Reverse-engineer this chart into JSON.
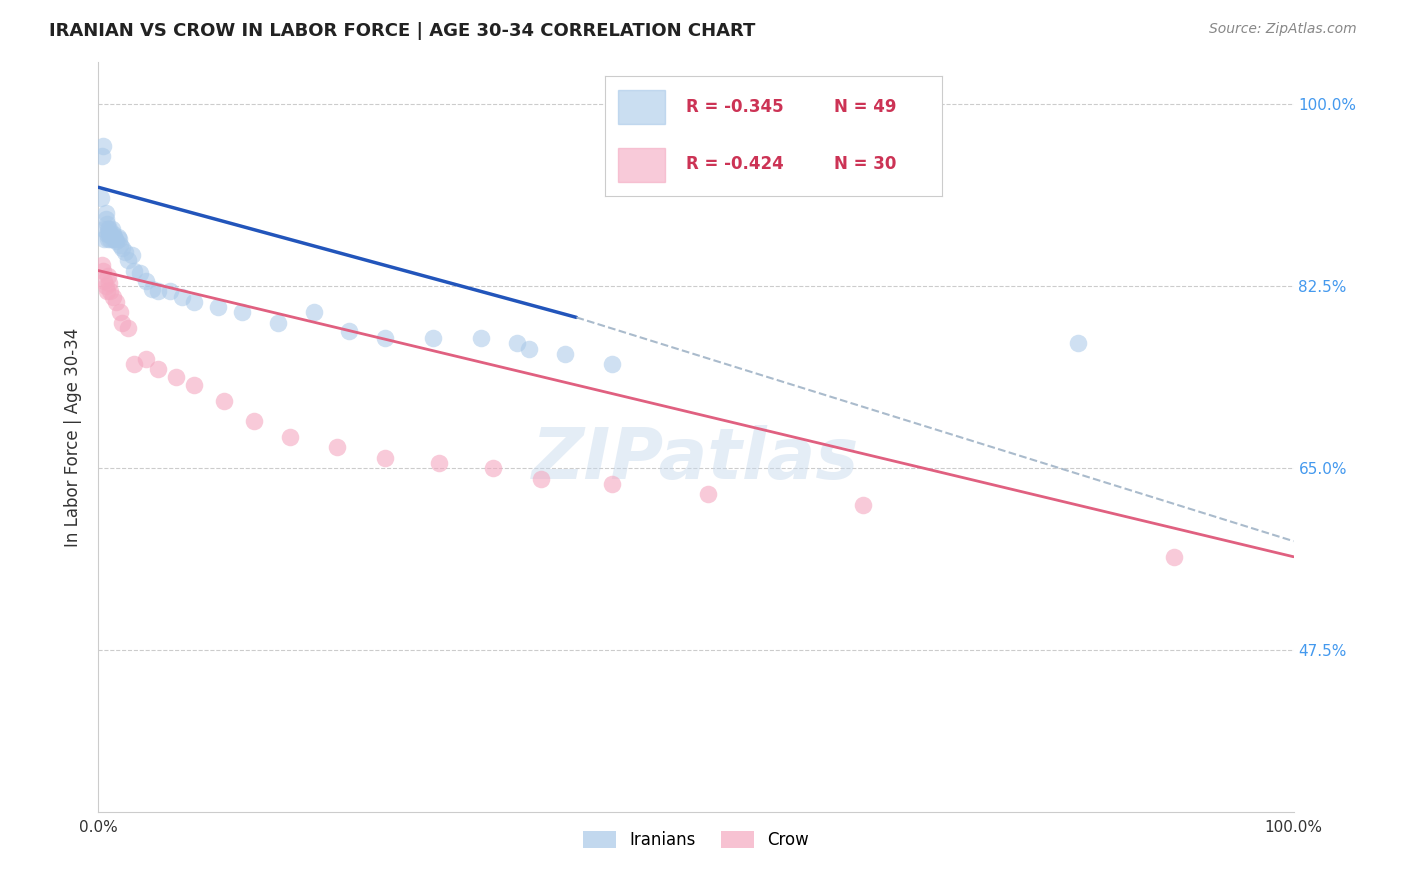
{
  "title": "IRANIAN VS CROW IN LABOR FORCE | AGE 30-34 CORRELATION CHART",
  "source": "Source: ZipAtlas.com",
  "ylabel": "In Labor Force | Age 30-34",
  "xlim": [
    0.0,
    1.0
  ],
  "ylim": [
    0.32,
    1.04
  ],
  "watermark_text": "ZIPatlas",
  "legend_blue_r": "-0.345",
  "legend_blue_n": "49",
  "legend_pink_r": "-0.424",
  "legend_pink_n": "30",
  "blue_scatter_color": "#a8c8e8",
  "pink_scatter_color": "#f4a8c0",
  "blue_line_color": "#2255bb",
  "pink_line_color": "#e06080",
  "dashed_line_color": "#aabbcc",
  "grid_color": "#cccccc",
  "ytick_right_color": "#4499ee",
  "ytick_vals": [
    1.0,
    0.825,
    0.65,
    0.475
  ],
  "ytick_labels": [
    "100.0%",
    "82.5%",
    "65.0%",
    "47.5%"
  ],
  "iranians_x": [
    0.002,
    0.003,
    0.004,
    0.005,
    0.005,
    0.006,
    0.006,
    0.007,
    0.007,
    0.008,
    0.008,
    0.009,
    0.009,
    0.01,
    0.01,
    0.011,
    0.012,
    0.012,
    0.013,
    0.014,
    0.015,
    0.016,
    0.017,
    0.018,
    0.02,
    0.022,
    0.025,
    0.028,
    0.03,
    0.035,
    0.04,
    0.045,
    0.05,
    0.06,
    0.07,
    0.08,
    0.1,
    0.12,
    0.15,
    0.18,
    0.21,
    0.24,
    0.28,
    0.32,
    0.35,
    0.36,
    0.39,
    0.43,
    0.82
  ],
  "iranians_y": [
    0.91,
    0.95,
    0.96,
    0.87,
    0.88,
    0.89,
    0.895,
    0.875,
    0.885,
    0.87,
    0.88,
    0.875,
    0.88,
    0.87,
    0.875,
    0.88,
    0.875,
    0.87,
    0.872,
    0.87,
    0.868,
    0.872,
    0.87,
    0.865,
    0.862,
    0.858,
    0.85,
    0.855,
    0.84,
    0.838,
    0.83,
    0.822,
    0.82,
    0.82,
    0.815,
    0.81,
    0.805,
    0.8,
    0.79,
    0.8,
    0.782,
    0.775,
    0.775,
    0.775,
    0.77,
    0.765,
    0.76,
    0.75,
    0.77
  ],
  "crow_x": [
    0.003,
    0.004,
    0.005,
    0.006,
    0.007,
    0.008,
    0.009,
    0.01,
    0.012,
    0.015,
    0.018,
    0.02,
    0.025,
    0.03,
    0.04,
    0.05,
    0.065,
    0.08,
    0.105,
    0.13,
    0.16,
    0.2,
    0.24,
    0.285,
    0.33,
    0.37,
    0.43,
    0.51,
    0.64,
    0.9
  ],
  "crow_y": [
    0.845,
    0.84,
    0.83,
    0.825,
    0.82,
    0.835,
    0.828,
    0.82,
    0.815,
    0.81,
    0.8,
    0.79,
    0.785,
    0.75,
    0.755,
    0.745,
    0.738,
    0.73,
    0.715,
    0.695,
    0.68,
    0.67,
    0.66,
    0.655,
    0.65,
    0.64,
    0.635,
    0.625,
    0.615,
    0.565
  ],
  "blue_trend_x": [
    0.0,
    0.4
  ],
  "blue_trend_y": [
    0.92,
    0.795
  ],
  "dashed_trend_x": [
    0.4,
    1.0
  ],
  "dashed_trend_y": [
    0.795,
    0.58
  ],
  "pink_trend_x": [
    0.0,
    1.0
  ],
  "pink_trend_y": [
    0.84,
    0.565
  ]
}
